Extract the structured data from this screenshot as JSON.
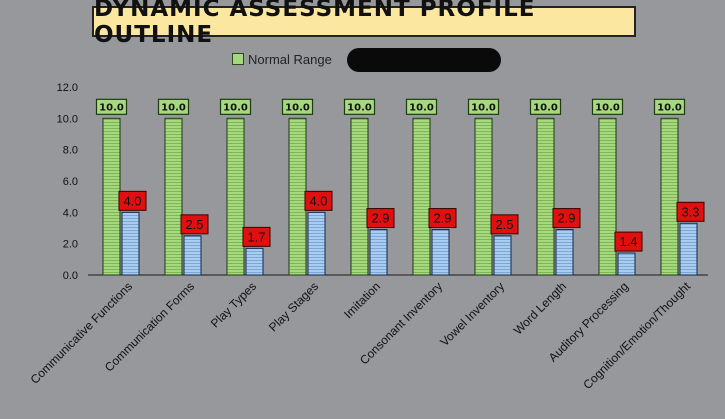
{
  "chart_data": {
    "type": "bar",
    "title": "DYNAMIC ASSESSMENT PROFILE OUTLINE",
    "legend_visible_entry": "Normal Range",
    "legend_placement": "top",
    "categories": [
      "Communicative Functions",
      "Communication Forms",
      "Play Types",
      "Play Stages",
      "Imitation",
      "Consonant Inventory",
      "Vowel Inventory",
      "Word Length",
      "Auditory Processing",
      "Cognition/Emotion/Thought"
    ],
    "series": [
      {
        "name": "Normal Range",
        "color": "#a6d97d",
        "values": [
          10.0,
          10.0,
          10.0,
          10.0,
          10.0,
          10.0,
          10.0,
          10.0,
          10.0,
          10.0
        ],
        "labels": [
          "10.0",
          "10.0",
          "10.0",
          "10.0",
          "10.0",
          "10.0",
          "10.0",
          "10.0",
          "10.0",
          "10.0"
        ]
      },
      {
        "color": "#9cc3ea",
        "label_color": "#e01010",
        "values": [
          4.0,
          2.5,
          1.7,
          4.0,
          2.9,
          2.9,
          2.5,
          2.9,
          1.4,
          3.3
        ],
        "labels": [
          "4.0",
          "2.5",
          "1.7",
          "4.0",
          "2.9",
          "2.9",
          "2.5",
          "2.9",
          "1.4",
          "3.3"
        ]
      }
    ],
    "ylim": [
      0,
      12
    ],
    "yticks": [
      "0.0",
      "2.0",
      "4.0",
      "6.0",
      "8.0",
      "10.0",
      "12.0"
    ],
    "grid": false
  }
}
